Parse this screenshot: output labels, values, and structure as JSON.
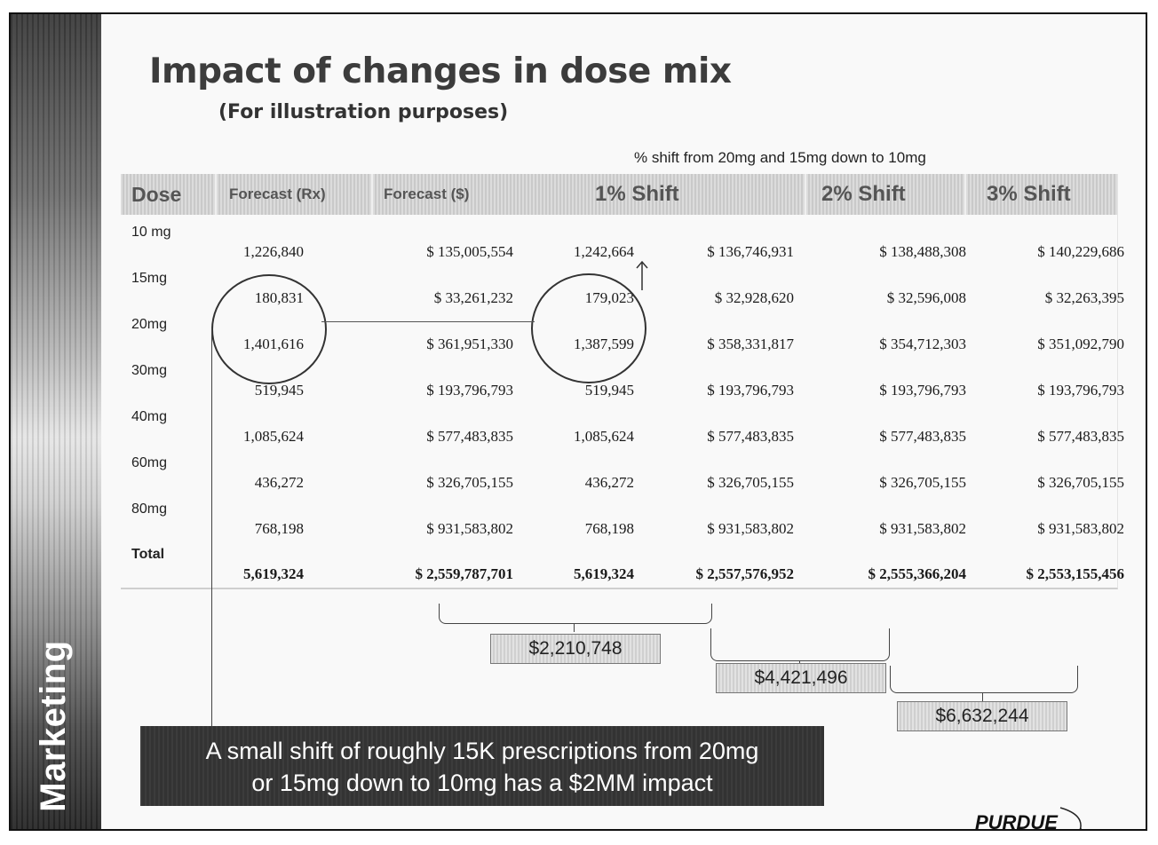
{
  "sidebar": {
    "label": "Marketing"
  },
  "slide": {
    "title": "Impact of changes in dose mix",
    "subtitle": "(For illustration purposes)",
    "shift_note": "% shift from 20mg and 15mg down to 10mg"
  },
  "table": {
    "headers": {
      "dose": "Dose",
      "forecast_rx": "Forecast  (Rx)",
      "forecast_usd": "Forecast ($)",
      "shift1": "1% Shift",
      "shift2": "2% Shift",
      "shift3": "3% Shift"
    },
    "rows": [
      {
        "dose": "10 mg",
        "rx": "1,226,840",
        "usd": "$ 135,005,554",
        "s1_rx": "1,242,664",
        "s1_usd": "$ 136,746,931",
        "s2_usd": "$  138,488,308",
        "s3_usd": "$ 140,229,686"
      },
      {
        "dose": "15mg",
        "rx": "180,831",
        "usd": "$  33,261,232",
        "s1_rx": "179,023",
        "s1_usd": "$ 32,928,620",
        "s2_usd": "$ 32,596,008",
        "s3_usd": "$ 32,263,395"
      },
      {
        "dose": "20mg",
        "rx": "1,401,616",
        "usd": "$ 361,951,330",
        "s1_rx": "1,387,599",
        "s1_usd": "$ 358,331,817",
        "s2_usd": "$ 354,712,303",
        "s3_usd": "$ 351,092,790"
      },
      {
        "dose": "30mg",
        "rx": "519,945",
        "usd": "$ 193,796,793",
        "s1_rx": "519,945",
        "s1_usd": "$ 193,796,793",
        "s2_usd": "$ 193,796,793",
        "s3_usd": "$ 193,796,793"
      },
      {
        "dose": "40mg",
        "rx": "1,085,624",
        "usd": "$ 577,483,835",
        "s1_rx": "1,085,624",
        "s1_usd": "$ 577,483,835",
        "s2_usd": "$ 577,483,835",
        "s3_usd": "$ 577,483,835"
      },
      {
        "dose": "60mg",
        "rx": "436,272",
        "usd": "$ 326,705,155",
        "s1_rx": "436,272",
        "s1_usd": "$ 326,705,155",
        "s2_usd": "$ 326,705,155",
        "s3_usd": "$ 326,705,155"
      },
      {
        "dose": "80mg",
        "rx": "768,198",
        "usd": "$ 931,583,802",
        "s1_rx": "768,198",
        "s1_usd": "$ 931,583,802",
        "s2_usd": "$ 931,583,802",
        "s3_usd": "$ 931,583,802"
      },
      {
        "dose": "Total",
        "rx": "5,619,324",
        "usd": "$ 2,559,787,701",
        "s1_rx": "5,619,324",
        "s1_usd": "$  2,557,576,952",
        "s2_usd": "$ 2,555,366,204",
        "s3_usd": "$ 2,553,155,456"
      }
    ]
  },
  "callouts": {
    "impact1": "$2,210,748",
    "impact2": "$4,421,496",
    "impact3": "$6,632,244"
  },
  "message": {
    "line1": "A small shift of roughly 15K prescriptions from 20mg",
    "line2": "or 15mg down to 10mg has a $2MM impact"
  },
  "logo": {
    "text": "PURDUE"
  }
}
